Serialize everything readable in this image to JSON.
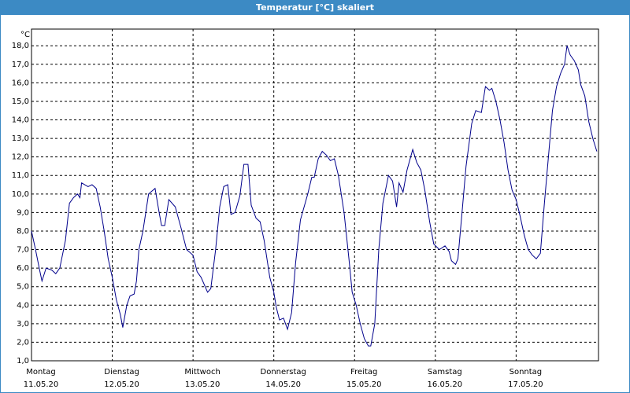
{
  "chart_data": {
    "type": "line",
    "title": "Temperatur [°C] skaliert",
    "y_unit": "°C",
    "x": [
      0,
      0.05,
      0.1,
      0.13,
      0.18,
      0.25,
      0.3,
      0.35,
      0.42,
      0.47,
      0.52,
      0.57,
      0.6,
      0.62,
      0.7,
      0.75,
      0.8,
      0.85,
      0.9,
      0.95,
      1.0,
      1.05,
      1.1,
      1.13,
      1.18,
      1.22,
      1.27,
      1.3,
      1.33,
      1.38,
      1.45,
      1.53,
      1.58,
      1.61,
      1.65,
      1.7,
      1.78,
      1.85,
      1.92,
      2.0,
      2.05,
      2.1,
      2.18,
      2.22,
      2.28,
      2.33,
      2.38,
      2.43,
      2.47,
      2.52,
      2.58,
      2.63,
      2.68,
      2.72,
      2.78,
      2.83,
      2.88,
      2.95,
      3.0,
      3.03,
      3.07,
      3.12,
      3.17,
      3.22,
      3.27,
      3.33,
      3.42,
      3.47,
      3.5,
      3.55,
      3.6,
      3.65,
      3.7,
      3.75,
      3.8,
      3.87,
      3.93,
      3.97,
      4.02,
      4.07,
      4.12,
      4.17,
      4.2,
      4.25,
      4.3,
      4.35,
      4.42,
      4.47,
      4.52,
      4.55,
      4.6,
      4.65,
      4.72,
      4.77,
      4.82,
      4.87,
      4.93,
      4.98,
      5.05,
      5.12,
      5.17,
      5.2,
      5.25,
      5.28,
      5.33,
      5.38,
      5.45,
      5.5,
      5.57,
      5.62,
      5.67,
      5.7,
      5.75,
      5.8,
      5.85,
      5.9,
      5.95,
      6.0,
      6.05,
      6.1,
      6.15,
      6.2,
      6.25,
      6.3,
      6.35,
      6.4,
      6.45,
      6.5,
      6.55,
      6.6,
      6.63,
      6.67,
      6.72,
      6.77,
      6.8,
      6.85,
      6.9,
      6.95,
      7.0
    ],
    "series": [
      {
        "color": "#00008b",
        "values": [
          8.0,
          7.0,
          5.9,
          5.3,
          6.0,
          5.9,
          5.7,
          6.0,
          7.5,
          9.5,
          9.8,
          10.0,
          9.8,
          10.6,
          10.4,
          10.5,
          10.3,
          9.3,
          8.0,
          6.5,
          5.5,
          4.3,
          3.5,
          2.8,
          4.0,
          4.5,
          4.6,
          5.3,
          7.0,
          8.0,
          10.0,
          10.3,
          9.0,
          8.3,
          8.3,
          9.7,
          9.3,
          8.2,
          7.0,
          6.7,
          5.8,
          5.5,
          4.7,
          4.9,
          7.0,
          9.3,
          10.4,
          10.5,
          8.9,
          9.0,
          9.9,
          11.6,
          11.6,
          9.4,
          8.7,
          8.5,
          7.5,
          5.5,
          4.7,
          3.9,
          3.2,
          3.3,
          2.7,
          3.6,
          6.3,
          8.6,
          10.0,
          10.9,
          10.9,
          11.9,
          12.3,
          12.1,
          11.8,
          11.9,
          11.0,
          9.0,
          6.5,
          4.7,
          4.0,
          3.0,
          2.2,
          1.8,
          1.8,
          3.0,
          7.0,
          9.5,
          11.0,
          10.7,
          9.3,
          10.6,
          10.1,
          11.3,
          12.4,
          11.7,
          11.3,
          10.2,
          8.5,
          7.3,
          7.0,
          7.2,
          6.9,
          6.4,
          6.2,
          6.5,
          9.0,
          11.5,
          13.8,
          14.5,
          14.4,
          15.8,
          15.6,
          15.7,
          15.0,
          14.0,
          12.8,
          11.3,
          10.2,
          9.7,
          8.8,
          7.8,
          7.0,
          6.7,
          6.5,
          6.8,
          9.5,
          12.0,
          14.5,
          15.8,
          16.5,
          17.0,
          18.0,
          17.5,
          17.2,
          16.7,
          15.9,
          15.3,
          13.9,
          13.0,
          12.3
        ]
      }
    ],
    "xlim": [
      0,
      7.02
    ],
    "xticks": [
      {
        "value": 0,
        "label": "Montag"
      },
      {
        "value": 1,
        "label": "Dienstag"
      },
      {
        "value": 2,
        "label": "Mittwoch"
      },
      {
        "value": 3,
        "label": "Donnerstag"
      },
      {
        "value": 4,
        "label": "Freitag"
      },
      {
        "value": 5,
        "label": "Samstag"
      },
      {
        "value": 6,
        "label": "Sonntag"
      }
    ],
    "xtick_dates": [
      "11.05.20",
      "12.05.20",
      "13.05.20",
      "14.05.20",
      "15.05.20",
      "16.05.20",
      "17.05.20"
    ],
    "ylim": [
      1,
      18.9
    ],
    "yticks": [
      {
        "value": 1,
        "label": "1,0"
      },
      {
        "value": 2,
        "label": "2,0"
      },
      {
        "value": 3,
        "label": "3,0"
      },
      {
        "value": 4,
        "label": "4,0"
      },
      {
        "value": 5,
        "label": "5,0"
      },
      {
        "value": 6,
        "label": "6,0"
      },
      {
        "value": 7,
        "label": "7,0"
      },
      {
        "value": 8,
        "label": "8,0"
      },
      {
        "value": 9,
        "label": "9,0"
      },
      {
        "value": 10,
        "label": "10,0"
      },
      {
        "value": 11,
        "label": "11,0"
      },
      {
        "value": 12,
        "label": "12,0"
      },
      {
        "value": 13,
        "label": "13,0"
      },
      {
        "value": 14,
        "label": "14,0"
      },
      {
        "value": 15,
        "label": "15,0"
      },
      {
        "value": 16,
        "label": "16,0"
      },
      {
        "value": 17,
        "label": "17,0"
      },
      {
        "value": 18,
        "label": "18,0"
      }
    ],
    "grid": true
  }
}
